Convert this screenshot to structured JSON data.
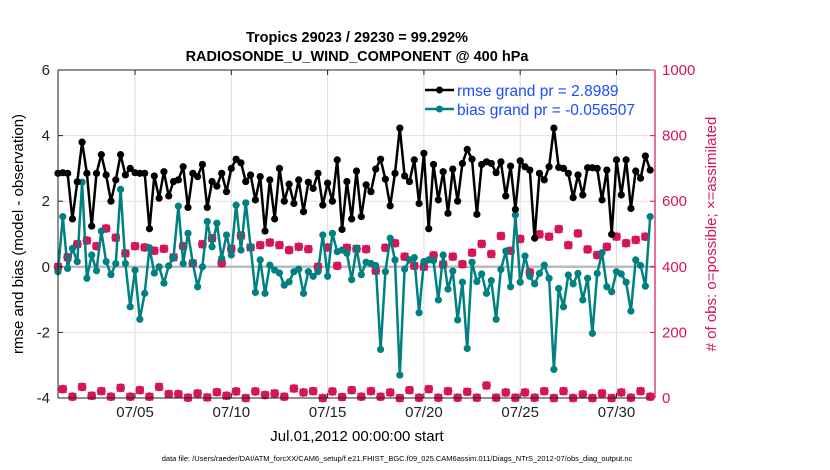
{
  "chart_data": {
    "type": "line",
    "title": "Tropics 29023 / 29230 = 99.292%",
    "subtitle": "RADIOSONDE_U_WIND_COMPONENT @ 400 hPa",
    "xlabel": "Jul.01,2012 00:00:00 start",
    "ylabel_left": "rmse and bias (model - observation)",
    "ylabel_right": "# of obs: o=possible; ×=assimilated",
    "footnote": "data file: /Users/raeder/DAI/ATM_forcXX/CAM6_setup/f.e21.FHIST_BGC.f09_025.CAM6assim.011/Diags_NTrS_2012-07/obs_diag_output.nc",
    "xlim": [
      "2012-07-01 00:00",
      "2012-08-01 00:00"
    ],
    "ylim_left": [
      -4,
      6
    ],
    "ylim_right": [
      0,
      1000
    ],
    "x_ticks": [
      {
        "value": "2012-07-05 00:00",
        "label": "07/05"
      },
      {
        "value": "2012-07-10 00:00",
        "label": "07/10"
      },
      {
        "value": "2012-07-15 00:00",
        "label": "07/15"
      },
      {
        "value": "2012-07-20 00:00",
        "label": "07/20"
      },
      {
        "value": "2012-07-25 00:00",
        "label": "07/25"
      },
      {
        "value": "2012-07-30 00:00",
        "label": "07/30"
      }
    ],
    "y_ticks_left": [
      -4,
      -2,
      0,
      2,
      4,
      6
    ],
    "y_ticks_right": [
      0,
      200,
      400,
      600,
      800,
      1000
    ],
    "grid": true,
    "legend_placement": "top-right",
    "colors": {
      "rmse": "#000000",
      "bias": "#008080",
      "obs": "#d6145a",
      "legend_text": "#1a4dff",
      "zero_line": "#bbbbbb"
    },
    "x": [
      "2012-07-01 00:00",
      "2012-07-01 06:00",
      "2012-07-01 12:00",
      "2012-07-01 18:00",
      "2012-07-02 00:00",
      "2012-07-02 06:00",
      "2012-07-02 12:00",
      "2012-07-02 18:00",
      "2012-07-03 00:00",
      "2012-07-03 06:00",
      "2012-07-03 12:00",
      "2012-07-03 18:00",
      "2012-07-04 00:00",
      "2012-07-04 06:00",
      "2012-07-04 12:00",
      "2012-07-04 18:00",
      "2012-07-05 00:00",
      "2012-07-05 06:00",
      "2012-07-05 12:00",
      "2012-07-05 18:00",
      "2012-07-06 00:00",
      "2012-07-06 06:00",
      "2012-07-06 12:00",
      "2012-07-06 18:00",
      "2012-07-07 00:00",
      "2012-07-07 06:00",
      "2012-07-07 12:00",
      "2012-07-07 18:00",
      "2012-07-08 00:00",
      "2012-07-08 06:00",
      "2012-07-08 12:00",
      "2012-07-08 18:00",
      "2012-07-09 00:00",
      "2012-07-09 06:00",
      "2012-07-09 12:00",
      "2012-07-09 18:00",
      "2012-07-10 00:00",
      "2012-07-10 06:00",
      "2012-07-10 12:00",
      "2012-07-10 18:00",
      "2012-07-11 00:00",
      "2012-07-11 06:00",
      "2012-07-11 12:00",
      "2012-07-11 18:00",
      "2012-07-12 00:00",
      "2012-07-12 06:00",
      "2012-07-12 12:00",
      "2012-07-12 18:00",
      "2012-07-13 00:00",
      "2012-07-13 06:00",
      "2012-07-13 12:00",
      "2012-07-13 18:00",
      "2012-07-14 00:00",
      "2012-07-14 06:00",
      "2012-07-14 12:00",
      "2012-07-14 18:00",
      "2012-07-15 00:00",
      "2012-07-15 06:00",
      "2012-07-15 12:00",
      "2012-07-15 18:00",
      "2012-07-16 00:00",
      "2012-07-16 06:00",
      "2012-07-16 12:00",
      "2012-07-16 18:00",
      "2012-07-17 00:00",
      "2012-07-17 06:00",
      "2012-07-17 12:00",
      "2012-07-17 18:00",
      "2012-07-18 00:00",
      "2012-07-18 06:00",
      "2012-07-18 12:00",
      "2012-07-18 18:00",
      "2012-07-19 00:00",
      "2012-07-19 06:00",
      "2012-07-19 12:00",
      "2012-07-19 18:00",
      "2012-07-20 00:00",
      "2012-07-20 06:00",
      "2012-07-20 12:00",
      "2012-07-20 18:00",
      "2012-07-21 00:00",
      "2012-07-21 06:00",
      "2012-07-21 12:00",
      "2012-07-21 18:00",
      "2012-07-22 00:00",
      "2012-07-22 06:00",
      "2012-07-22 12:00",
      "2012-07-22 18:00",
      "2012-07-23 00:00",
      "2012-07-23 06:00",
      "2012-07-23 12:00",
      "2012-07-23 18:00",
      "2012-07-24 00:00",
      "2012-07-24 06:00",
      "2012-07-24 12:00",
      "2012-07-24 18:00",
      "2012-07-25 00:00",
      "2012-07-25 06:00",
      "2012-07-25 12:00",
      "2012-07-25 18:00",
      "2012-07-26 00:00",
      "2012-07-26 06:00",
      "2012-07-26 12:00",
      "2012-07-26 18:00",
      "2012-07-27 00:00",
      "2012-07-27 06:00",
      "2012-07-27 12:00",
      "2012-07-27 18:00",
      "2012-07-28 00:00",
      "2012-07-28 06:00",
      "2012-07-28 12:00",
      "2012-07-28 18:00",
      "2012-07-29 00:00",
      "2012-07-29 06:00",
      "2012-07-29 12:00",
      "2012-07-29 18:00",
      "2012-07-30 00:00",
      "2012-07-30 06:00",
      "2012-07-30 12:00",
      "2012-07-30 18:00",
      "2012-07-31 00:00",
      "2012-07-31 06:00",
      "2012-07-31 12:00",
      "2012-07-31 18:00"
    ],
    "series": [
      {
        "name": "rmse grand pr = 2.8989",
        "axis": "left",
        "values": [
          2.85,
          2.87,
          2.85,
          1.46,
          2.59,
          3.8,
          2.85,
          1.24,
          2.85,
          3.42,
          2.8,
          2.0,
          2.65,
          3.42,
          2.8,
          3.0,
          2.87,
          2.85,
          2.85,
          1.16,
          2.77,
          2.09,
          2.9,
          2.16,
          2.6,
          2.65,
          3.05,
          1.81,
          2.85,
          2.75,
          3.12,
          1.81,
          2.6,
          2.46,
          2.85,
          2.29,
          3.0,
          3.28,
          3.17,
          2.6,
          2.8,
          2.04,
          2.75,
          1.09,
          2.65,
          1.46,
          3.0,
          2.0,
          2.52,
          1.93,
          2.65,
          1.68,
          2.58,
          2.39,
          2.85,
          1.88,
          2.55,
          2.0,
          3.26,
          1.14,
          2.6,
          1.46,
          2.92,
          1.53,
          2.5,
          2.29,
          2.98,
          3.28,
          2.67,
          1.86,
          2.85,
          4.23,
          2.77,
          2.6,
          3.26,
          1.93,
          3.46,
          1.16,
          3.12,
          2.04,
          2.9,
          1.63,
          2.98,
          2.0,
          3.15,
          3.58,
          3.28,
          1.6,
          3.12,
          3.2,
          3.15,
          2.87,
          3.2,
          2.16,
          3.07,
          1.75,
          3.23,
          3.05,
          2.95,
          0.87,
          2.85,
          2.65,
          3.05,
          4.23,
          3.03,
          3.0,
          2.85,
          2.11,
          2.8,
          2.19,
          3.02,
          3.02,
          3.0,
          2.04,
          2.95,
          0.99,
          3.26,
          2.19,
          3.26,
          1.78,
          2.92,
          2.7,
          3.38,
          2.95
        ]
      },
      {
        "name": "bias grand pr = -0.056507",
        "axis": "left",
        "values": [
          -0.15,
          1.53,
          -0.05,
          0.56,
          0.16,
          2.58,
          -0.35,
          0.36,
          -0.12,
          1.09,
          0.16,
          -0.24,
          0.1,
          2.36,
          0.1,
          -1.22,
          -0.1,
          -1.6,
          -0.81,
          0.58,
          -0.19,
          0.0,
          -0.5,
          0.03,
          0.28,
          1.85,
          0.1,
          1.02,
          0.12,
          -0.61,
          0.0,
          1.38,
          0.61,
          1.33,
          0.26,
          0.97,
          0.36,
          1.88,
          0.51,
          1.95,
          0.61,
          -0.78,
          0.21,
          -0.81,
          0.05,
          -0.1,
          -0.19,
          -0.56,
          -0.46,
          -0.15,
          -0.07,
          -0.81,
          -0.15,
          -0.29,
          -0.15,
          0.97,
          -0.29,
          1.02,
          0.46,
          0.51,
          0.41,
          -0.39,
          0.56,
          -0.24,
          0.14,
          0.1,
          0.04,
          -2.52,
          -0.15,
          0.87,
          0.21,
          -3.3,
          -0.07,
          0.21,
          0.28,
          -1.4,
          0.16,
          0.21,
          0.19,
          -1.01,
          0.36,
          -0.68,
          -0.13,
          -1.62,
          -0.47,
          -2.49,
          0.14,
          -0.45,
          -0.22,
          -0.81,
          -0.42,
          -1.6,
          -0.08,
          0.48,
          -0.61,
          1.58,
          -0.47,
          0.33,
          -0.29,
          -0.52,
          -0.2,
          0.05,
          -0.35,
          -3.13,
          -0.66,
          -1.22,
          -0.25,
          -0.52,
          -0.2,
          -1.01,
          -0.35,
          -2.03,
          -0.2,
          0.43,
          -0.61,
          -0.76,
          -0.15,
          -0.22,
          -0.47,
          -1.35,
          0.21,
          0.04,
          -0.59,
          1.53
        ]
      },
      {
        "axis": "right",
        "marker": "o",
        "values": [
          400,
          27,
          429,
          4,
          469,
          34,
          480,
          7,
          463,
          21,
          517,
          4,
          489,
          31,
          441,
          4,
          463,
          24,
          459,
          4,
          449,
          34,
          455,
          12,
          429,
          12,
          463,
          1,
          411,
          14,
          469,
          2,
          487,
          18,
          411,
          7,
          455,
          20,
          495,
          0,
          459,
          20,
          466,
          9,
          474,
          14,
          466,
          4,
          451,
          29,
          461,
          17,
          454,
          21,
          400,
          0,
          459,
          20,
          403,
          3,
          458,
          24,
          455,
          4,
          454,
          21,
          388,
          4,
          458,
          17,
          472,
          0,
          431,
          24,
          403,
          1,
          400,
          27,
          435,
          1,
          407,
          21,
          431,
          1,
          408,
          19,
          443,
          1,
          470,
          38,
          439,
          1,
          494,
          17,
          449,
          1,
          485,
          17,
          383,
          1,
          499,
          21,
          492,
          0,
          515,
          21,
          466,
          0,
          502,
          11,
          453,
          0,
          436,
          14,
          461,
          0,
          492,
          17,
          472,
          1,
          482,
          21,
          492,
          4
        ]
      },
      {
        "axis": "right",
        "marker": "x",
        "values": [
          400,
          27,
          429,
          4,
          469,
          34,
          480,
          7,
          463,
          21,
          517,
          4,
          489,
          31,
          441,
          4,
          463,
          24,
          459,
          4,
          449,
          34,
          455,
          12,
          429,
          12,
          463,
          1,
          411,
          14,
          469,
          2,
          487,
          18,
          411,
          7,
          455,
          20,
          495,
          0,
          459,
          20,
          466,
          9,
          474,
          14,
          466,
          4,
          451,
          29,
          461,
          17,
          454,
          21,
          400,
          0,
          459,
          20,
          403,
          3,
          458,
          24,
          455,
          4,
          454,
          21,
          388,
          4,
          458,
          17,
          472,
          0,
          431,
          24,
          403,
          1,
          400,
          27,
          435,
          1,
          407,
          21,
          431,
          1,
          408,
          19,
          443,
          1,
          470,
          38,
          439,
          1,
          494,
          17,
          449,
          1,
          485,
          17,
          383,
          1,
          499,
          21,
          492,
          0,
          515,
          21,
          466,
          0,
          502,
          11,
          453,
          0,
          436,
          14,
          461,
          0,
          492,
          17,
          472,
          1,
          482,
          21,
          492,
          4
        ]
      }
    ]
  }
}
